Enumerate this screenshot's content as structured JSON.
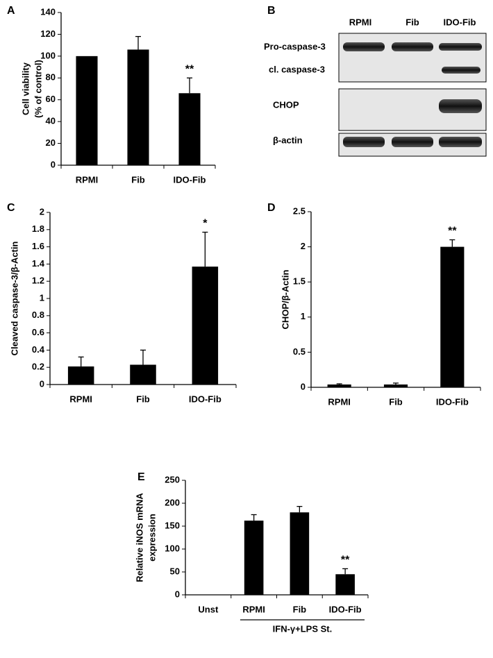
{
  "chart_data": [
    {
      "type": "bar",
      "panel": "A",
      "ylabel": [
        "Cell viability",
        "(% of control)"
      ],
      "categories": [
        "RPMI",
        "Fib",
        "IDO-Fib"
      ],
      "values": [
        100,
        106,
        66
      ],
      "errors": [
        0,
        12,
        14
      ],
      "significance": [
        null,
        null,
        "**"
      ],
      "color": "#000000",
      "ylim": [
        0,
        140
      ],
      "yticks": [
        0,
        20,
        40,
        60,
        80,
        100,
        120,
        140
      ]
    },
    {
      "type": "bar",
      "panel": "C",
      "ylabel": [
        "Cleaved caspase-3/β-Actin"
      ],
      "categories": [
        "RPMI",
        "Fib",
        "IDO-Fib"
      ],
      "values": [
        0.21,
        0.23,
        1.37
      ],
      "errors": [
        0.11,
        0.17,
        0.4
      ],
      "significance": [
        null,
        null,
        "*"
      ],
      "color": "#000000",
      "ylim": [
        0,
        2
      ],
      "yticks": [
        0,
        0.2,
        0.4,
        0.6,
        0.8,
        1,
        1.2,
        1.4,
        1.6,
        1.8,
        2
      ]
    },
    {
      "type": "bar",
      "panel": "D",
      "ylabel": [
        "CHOP/β-Actin"
      ],
      "categories": [
        "RPMI",
        "Fib",
        "IDO-Fib"
      ],
      "values": [
        0.04,
        0.04,
        2.0
      ],
      "errors": [
        0.01,
        0.02,
        0.1
      ],
      "significance": [
        null,
        null,
        "**"
      ],
      "color": "#000000",
      "ylim": [
        0,
        2.5
      ],
      "yticks": [
        0,
        0.5,
        1,
        1.5,
        2,
        2.5
      ]
    },
    {
      "type": "bar",
      "panel": "E",
      "ylabel": [
        "Relative iNOS mRNA",
        "expression"
      ],
      "categories": [
        "Unst",
        "RPMI",
        "Fib",
        "IDO-Fib"
      ],
      "values": [
        0,
        162,
        180,
        45
      ],
      "errors": [
        0,
        13,
        13,
        12
      ],
      "significance": [
        null,
        null,
        null,
        "**"
      ],
      "group_label": "IFN-γ+LPS St.",
      "color": "#000000",
      "ylim": [
        0,
        250
      ],
      "yticks": [
        0,
        50,
        100,
        150,
        200,
        250
      ]
    }
  ],
  "blot": {
    "panel": "B",
    "columns": [
      "RPMI",
      "Fib",
      "IDO-Fib"
    ],
    "rows": [
      "Pro-caspase-3",
      "cl. caspase-3",
      "CHOP",
      "β-actin"
    ]
  }
}
